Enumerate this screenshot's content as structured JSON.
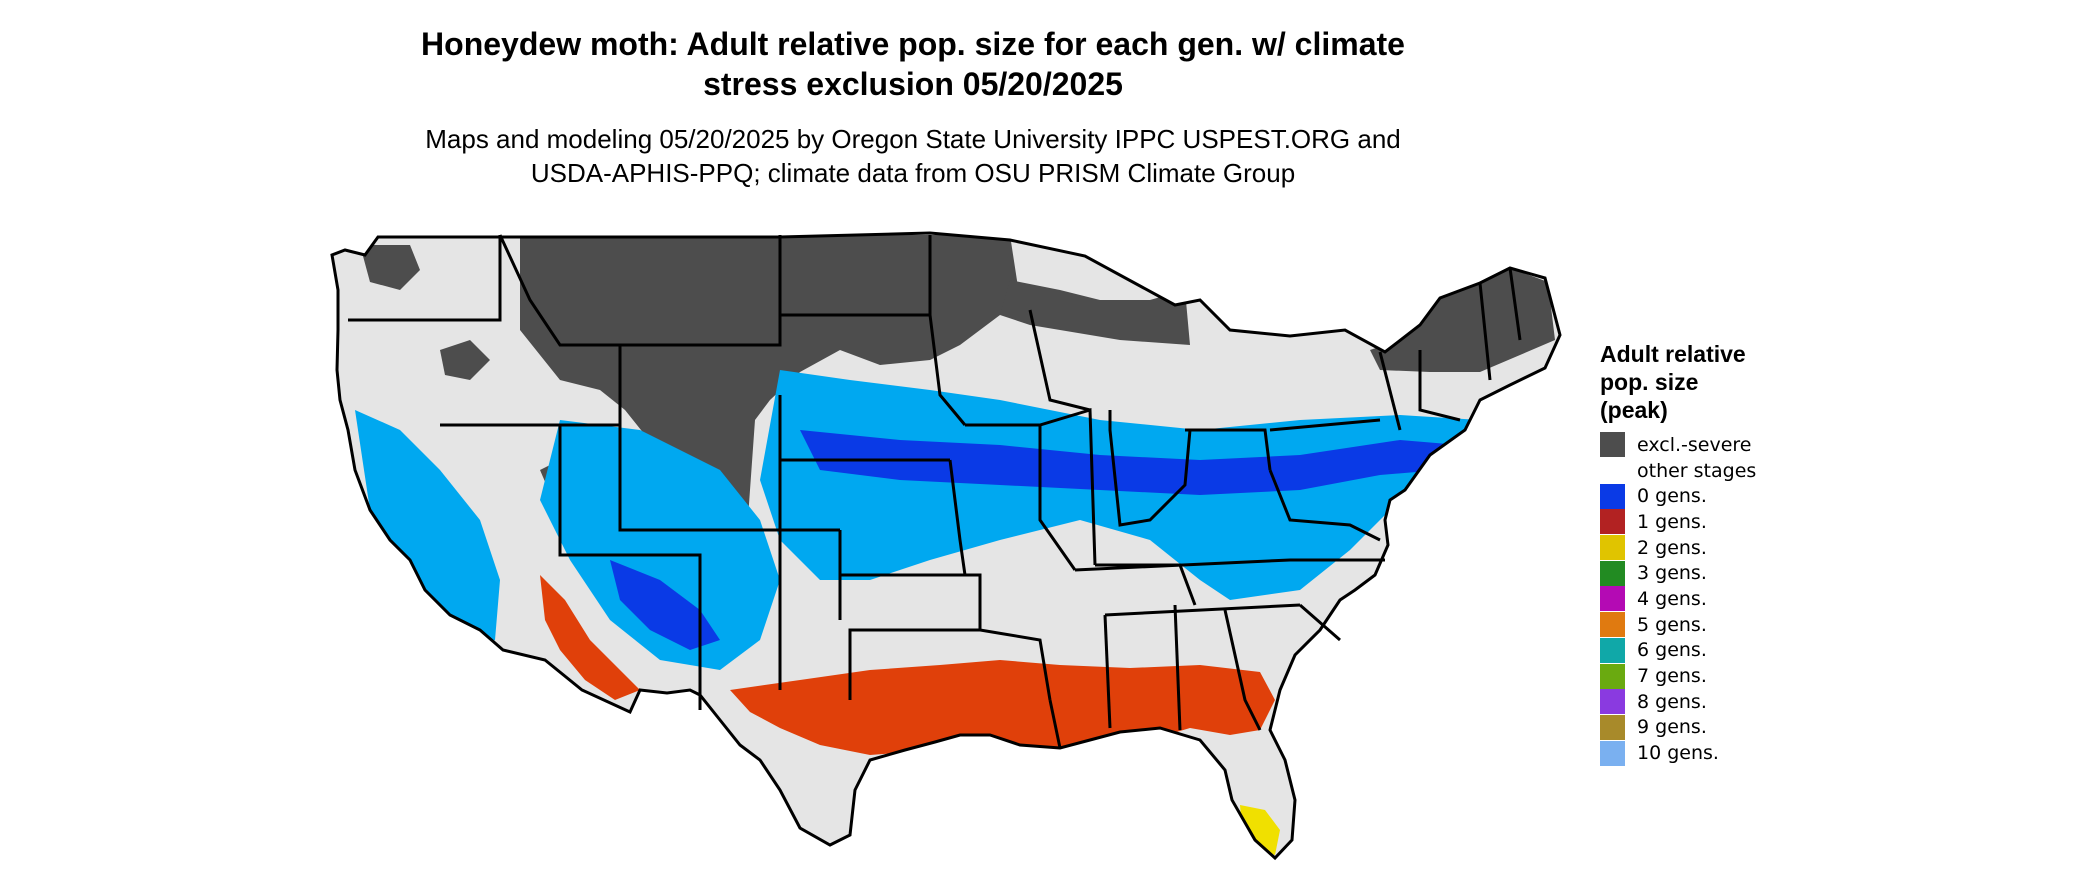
{
  "title_line1": "Honeydew moth: Adult relative pop. size for each gen. w/ climate",
  "title_line2": "stress exclusion 05/20/2025",
  "subtitle_line1": "Maps and modeling 05/20/2025 by Oregon State University IPPC USPEST.ORG and",
  "subtitle_line2": "USDA-APHIS-PPQ; climate data from OSU PRISM Climate Group",
  "legend": {
    "title_line1": "Adult relative",
    "title_line2": "pop. size",
    "title_line3": "(peak)",
    "items": [
      {
        "label": "excl.-severe",
        "color": "#4d4d4d"
      },
      {
        "label": "other stages",
        "color": "#ffffff"
      },
      {
        "label": "0 gens.",
        "color": "#0a3ae6"
      },
      {
        "label": "1 gens.",
        "color": "#b22222"
      },
      {
        "label": "2 gens.",
        "color": "#e0c400"
      },
      {
        "label": "3 gens.",
        "color": "#228b22"
      },
      {
        "label": "4 gens.",
        "color": "#b40ab4"
      },
      {
        "label": "5 gens.",
        "color": "#e07a10"
      },
      {
        "label": "6 gens.",
        "color": "#10a8a8"
      },
      {
        "label": "7 gens.",
        "color": "#6aaa10"
      },
      {
        "label": "8 gens.",
        "color": "#8a3ae0"
      },
      {
        "label": "9 gens.",
        "color": "#a88a2a"
      },
      {
        "label": "10 gens.",
        "color": "#7ab0f0"
      }
    ]
  },
  "map_colors": {
    "land": "#e5e5e5",
    "excluded": "#4d4d4d",
    "cold_band_light": "#00a8f0",
    "cold_band_dark": "#0a3ae6",
    "one_gen": "#e0400a",
    "two_gen": "#f0e000",
    "border": "#000000"
  }
}
